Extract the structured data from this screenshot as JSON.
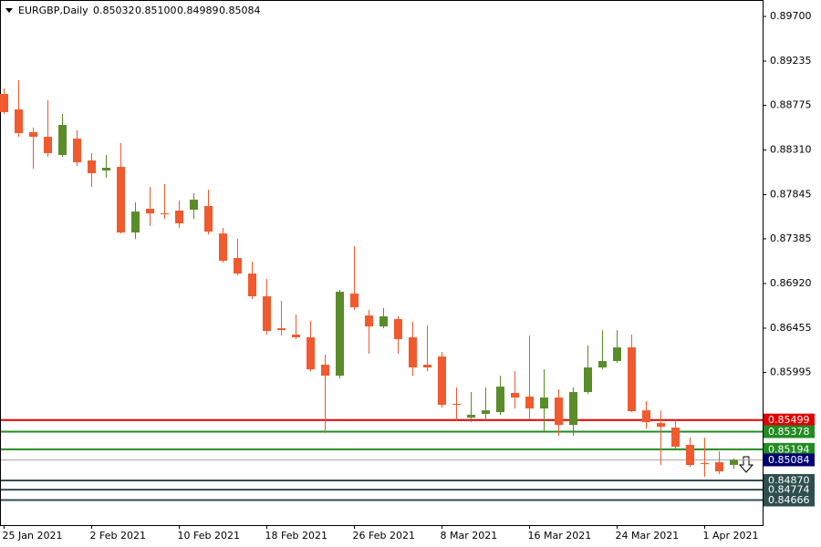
{
  "chart_data": {
    "type": "candlestick",
    "title": "EURGBP,Daily",
    "header_values": [
      "0.85032",
      "0.85100",
      "0.84989",
      "0.85084"
    ],
    "categories": [
      "25 Jan 2021",
      null,
      null,
      null,
      null,
      null,
      "2 Feb 2021",
      null,
      null,
      null,
      null,
      null,
      "10 Feb 2021",
      null,
      null,
      null,
      null,
      null,
      "18 Feb 2021",
      null,
      null,
      null,
      null,
      null,
      "26 Feb 2021",
      null,
      null,
      null,
      null,
      null,
      "8 Mar 2021",
      null,
      null,
      null,
      null,
      null,
      "16 Mar 2021",
      null,
      null,
      null,
      null,
      null,
      "24 Mar 2021",
      null,
      null,
      null,
      null,
      null,
      "1 Apr 2021",
      null,
      null
    ],
    "open": [
      0.88893,
      0.88732,
      0.88495,
      0.88447,
      0.88258,
      0.88428,
      0.88201,
      0.88096,
      0.88134,
      0.87451,
      0.87698,
      0.8765,
      0.87679,
      0.87688,
      0.87726,
      0.87441,
      0.87185,
      0.87024,
      0.86787,
      0.86454,
      0.86388,
      0.8636,
      0.86075,
      0.85961,
      0.86815,
      0.86587,
      0.86473,
      0.86549,
      0.8636,
      0.86075,
      0.8616,
      0.85667,
      0.85524,
      0.85562,
      0.85581,
      0.85781,
      0.85743,
      0.85619,
      0.85733,
      0.85448,
      0.8579,
      0.86046,
      0.86113,
      0.86255,
      0.856,
      0.85467,
      0.8542,
      0.8524,
      0.8505,
      0.85059,
      0.85032
    ],
    "high": [
      0.8895,
      0.89036,
      0.88542,
      0.88827,
      0.88685,
      0.88514,
      0.88277,
      0.88258,
      0.88381,
      0.87764,
      0.87925,
      0.87954,
      0.87783,
      0.87859,
      0.87897,
      0.87498,
      0.87384,
      0.87147,
      0.86967,
      0.86739,
      0.86597,
      0.8653,
      0.86179,
      0.86853,
      0.87309,
      0.86644,
      0.86663,
      0.86578,
      0.86521,
      0.86483,
      0.86208,
      0.85838,
      0.8579,
      0.85838,
      0.85961,
      0.86008,
      0.86379,
      0.86027,
      0.85819,
      0.85838,
      0.86274,
      0.86435,
      0.86435,
      0.86388,
      0.85695,
      0.856,
      0.85505,
      0.85316,
      0.85316,
      0.85173,
      0.851
    ],
    "low": [
      0.88685,
      0.88447,
      0.88115,
      0.88239,
      0.88239,
      0.88144,
      0.87925,
      0.8802,
      0.87441,
      0.87384,
      0.87517,
      0.87593,
      0.87498,
      0.87593,
      0.87432,
      0.87138,
      0.87005,
      0.86758,
      0.86388,
      0.86379,
      0.86341,
      0.86008,
      0.85363,
      0.85932,
      0.86644,
      0.86189,
      0.86454,
      0.86189,
      0.85961,
      0.86008,
      0.85629,
      0.85486,
      0.85477,
      0.85486,
      0.85553,
      0.85619,
      0.85505,
      0.85382,
      0.85335,
      0.85335,
      0.85771,
      0.86027,
      0.86094,
      0.85581,
      0.8541,
      0.85031,
      0.85202,
      0.85012,
      0.84908,
      0.84936,
      0.84989
    ],
    "close": [
      0.88704,
      0.88485,
      0.88447,
      0.88277,
      0.88571,
      0.88182,
      0.88068,
      0.88125,
      0.87451,
      0.87669,
      0.8765,
      0.87641,
      0.87546,
      0.87793,
      0.8746,
      0.87157,
      0.87024,
      0.86787,
      0.86426,
      0.86435,
      0.8636,
      0.86027,
      0.85961,
      0.86834,
      0.86673,
      0.86473,
      0.86578,
      0.86341,
      0.86046,
      0.86046,
      0.85657,
      0.85657,
      0.85553,
      0.856,
      0.85847,
      0.85733,
      0.85619,
      0.85733,
      0.85448,
      0.8579,
      0.86046,
      0.86113,
      0.86255,
      0.85591,
      0.85477,
      0.85429,
      0.85221,
      0.85031,
      0.8504,
      0.84965,
      0.85084
    ],
    "up_color": "#5b8c2a",
    "down_color": "#f05a2e",
    "ylim": [
      0.84405,
      0.89871
    ],
    "yticks": [
      {
        "value": 0.897,
        "label": "0.89700"
      },
      0.89235,
      0.88775,
      {
        "value": 0.8831,
        "label": "0.88310"
      },
      0.87845,
      0.87385,
      {
        "value": 0.8692,
        "label": "0.86920"
      },
      0.86455,
      0.85995
    ],
    "levels": [
      {
        "value": 0.85499,
        "color": "#e00000",
        "box_color": "#e00000"
      },
      {
        "value": 0.85378,
        "color": "#228b22",
        "box_color": "#228b22"
      },
      {
        "value": 0.85194,
        "color": "#228b22",
        "box_color": "#228b22"
      },
      {
        "value": 0.85084,
        "color": "#a8a8a8",
        "box_color": "#000070"
      },
      {
        "value": 0.8487,
        "label": "0.84870",
        "color": "#2f4f4f",
        "box_color": "#2f4f4f"
      },
      {
        "value": 0.84774,
        "color": "#2f4f4f",
        "box_color": "#2f4f4f"
      },
      {
        "value": 0.84666,
        "color": "#2f4f4f",
        "box_color": "#2f4f4f"
      }
    ]
  }
}
